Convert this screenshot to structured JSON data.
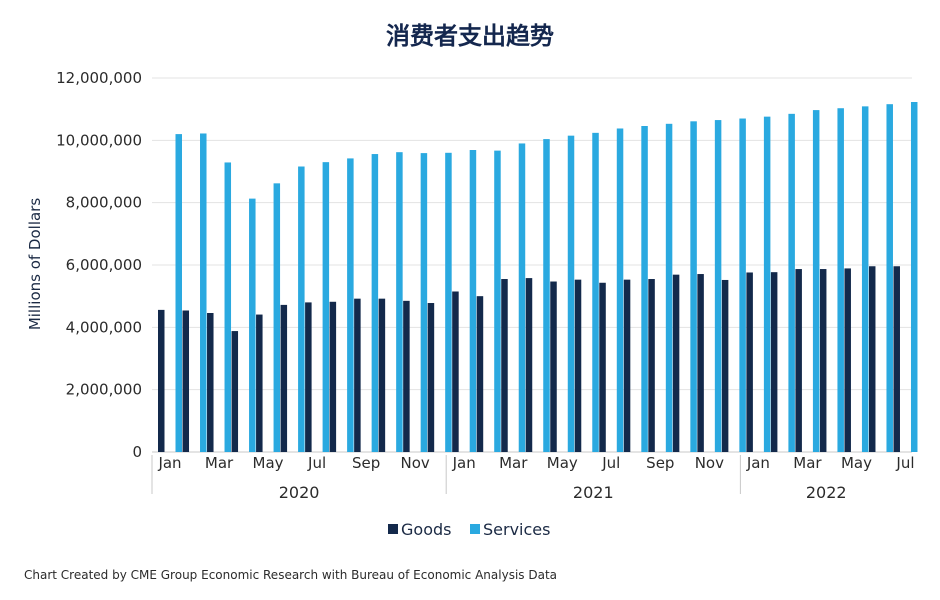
{
  "colors": {
    "goods": "#13294b",
    "services": "#2aa9e0",
    "grid": "#e3e3e3",
    "axis": "#c8c8c8"
  },
  "chart_data": {
    "type": "bar",
    "title": "消费者支出趋势",
    "ylabel": "Millions of Dollars",
    "xlabel": "",
    "ylim": [
      0,
      12000000
    ],
    "yticks": [
      0,
      2000000,
      4000000,
      6000000,
      8000000,
      10000000,
      12000000
    ],
    "ytick_labels": [
      "0",
      "2,000,000",
      "4,000,000",
      "6,000,000",
      "8,000,000",
      "10,000,000",
      "12,000,000"
    ],
    "grid": true,
    "legend_position": "bottom",
    "categories": [
      "2020-01",
      "2020-02",
      "2020-03",
      "2020-04",
      "2020-05",
      "2020-06",
      "2020-07",
      "2020-08",
      "2020-09",
      "2020-10",
      "2020-11",
      "2020-12",
      "2021-01",
      "2021-02",
      "2021-03",
      "2021-04",
      "2021-05",
      "2021-06",
      "2021-07",
      "2021-08",
      "2021-09",
      "2021-10",
      "2021-11",
      "2021-12",
      "2022-01",
      "2022-02",
      "2022-03",
      "2022-04",
      "2022-05",
      "2022-06",
      "2022-07"
    ],
    "x_tick_labels": [
      "Jan",
      "",
      "Mar",
      "",
      "May",
      "",
      "Jul",
      "",
      "Sep",
      "",
      "Nov",
      "",
      "Jan",
      "",
      "Mar",
      "",
      "May",
      "",
      "Jul",
      "",
      "Sep",
      "",
      "Nov",
      "",
      "Jan",
      "",
      "Mar",
      "",
      "May",
      "",
      "Jul"
    ],
    "year_groups": [
      {
        "label": "2020",
        "start": 0,
        "end": 11
      },
      {
        "label": "2021",
        "start": 12,
        "end": 23
      },
      {
        "label": "2022",
        "start": 24,
        "end": 30
      }
    ],
    "series": [
      {
        "name": "Goods",
        "values": [
          4560000,
          4540000,
          4460000,
          3880000,
          4410000,
          4720000,
          4800000,
          4820000,
          4920000,
          4920000,
          4850000,
          4780000,
          5150000,
          5000000,
          5550000,
          5580000,
          5470000,
          5530000,
          5430000,
          5530000,
          5550000,
          5690000,
          5710000,
          5520000,
          5760000,
          5770000,
          5870000,
          5870000,
          5890000,
          5960000,
          5960000
        ]
      },
      {
        "name": "Services",
        "values": [
          10200000,
          10220000,
          9290000,
          8130000,
          8620000,
          9160000,
          9300000,
          9420000,
          9560000,
          9620000,
          9590000,
          9600000,
          9690000,
          9670000,
          9900000,
          10040000,
          10150000,
          10240000,
          10380000,
          10460000,
          10530000,
          10610000,
          10650000,
          10700000,
          10760000,
          10850000,
          10970000,
          11030000,
          11090000,
          11160000,
          11230000
        ]
      }
    ]
  },
  "source_note": "Chart Created by CME Group Economic Research with Bureau of Economic Analysis Data"
}
